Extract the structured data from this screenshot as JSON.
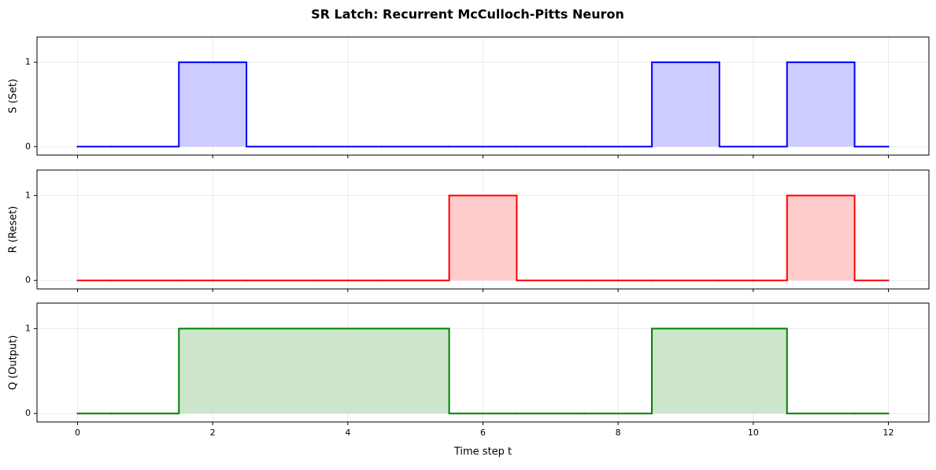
{
  "title": "SR Latch: Recurrent McCulloch-Pitts Neuron",
  "chart_data": [
    {
      "type": "step",
      "ylabel": "S (Set)",
      "color": "#0000ff",
      "fill_color": "#ccccff",
      "x": [
        0,
        1,
        2,
        3,
        4,
        5,
        6,
        7,
        8,
        9,
        10,
        11,
        12
      ],
      "values": [
        0,
        0,
        1,
        0,
        0,
        0,
        0,
        0,
        0,
        1,
        0,
        1,
        0
      ],
      "xlim": [
        -0.6,
        12.6
      ],
      "xticks": [
        0,
        2,
        4,
        6,
        8,
        10,
        12
      ],
      "ylim": [
        -0.1,
        1.3
      ],
      "yticks": [
        0,
        1
      ],
      "grid": true
    },
    {
      "type": "step",
      "ylabel": "R (Reset)",
      "color": "#ff0000",
      "fill_color": "#ffcccc",
      "x": [
        0,
        1,
        2,
        3,
        4,
        5,
        6,
        7,
        8,
        9,
        10,
        11,
        12
      ],
      "values": [
        0,
        0,
        0,
        0,
        0,
        0,
        1,
        0,
        0,
        0,
        0,
        1,
        0
      ],
      "xlim": [
        -0.6,
        12.6
      ],
      "xticks": [
        0,
        2,
        4,
        6,
        8,
        10,
        12
      ],
      "ylim": [
        -0.1,
        1.3
      ],
      "yticks": [
        0,
        1
      ],
      "grid": true
    },
    {
      "type": "step",
      "ylabel": "Q (Output)",
      "xlabel": "Time step t",
      "color": "#008000",
      "fill_color": "#cce5cc",
      "x": [
        0,
        1,
        2,
        3,
        4,
        5,
        6,
        7,
        8,
        9,
        10,
        11,
        12
      ],
      "values": [
        0,
        0,
        1,
        1,
        1,
        1,
        0,
        0,
        0,
        1,
        1,
        0,
        0
      ],
      "xlim": [
        -0.6,
        12.6
      ],
      "xticks": [
        0,
        2,
        4,
        6,
        8,
        10,
        12
      ],
      "ylim": [
        -0.1,
        1.3
      ],
      "yticks": [
        0,
        1
      ],
      "grid": true
    }
  ]
}
